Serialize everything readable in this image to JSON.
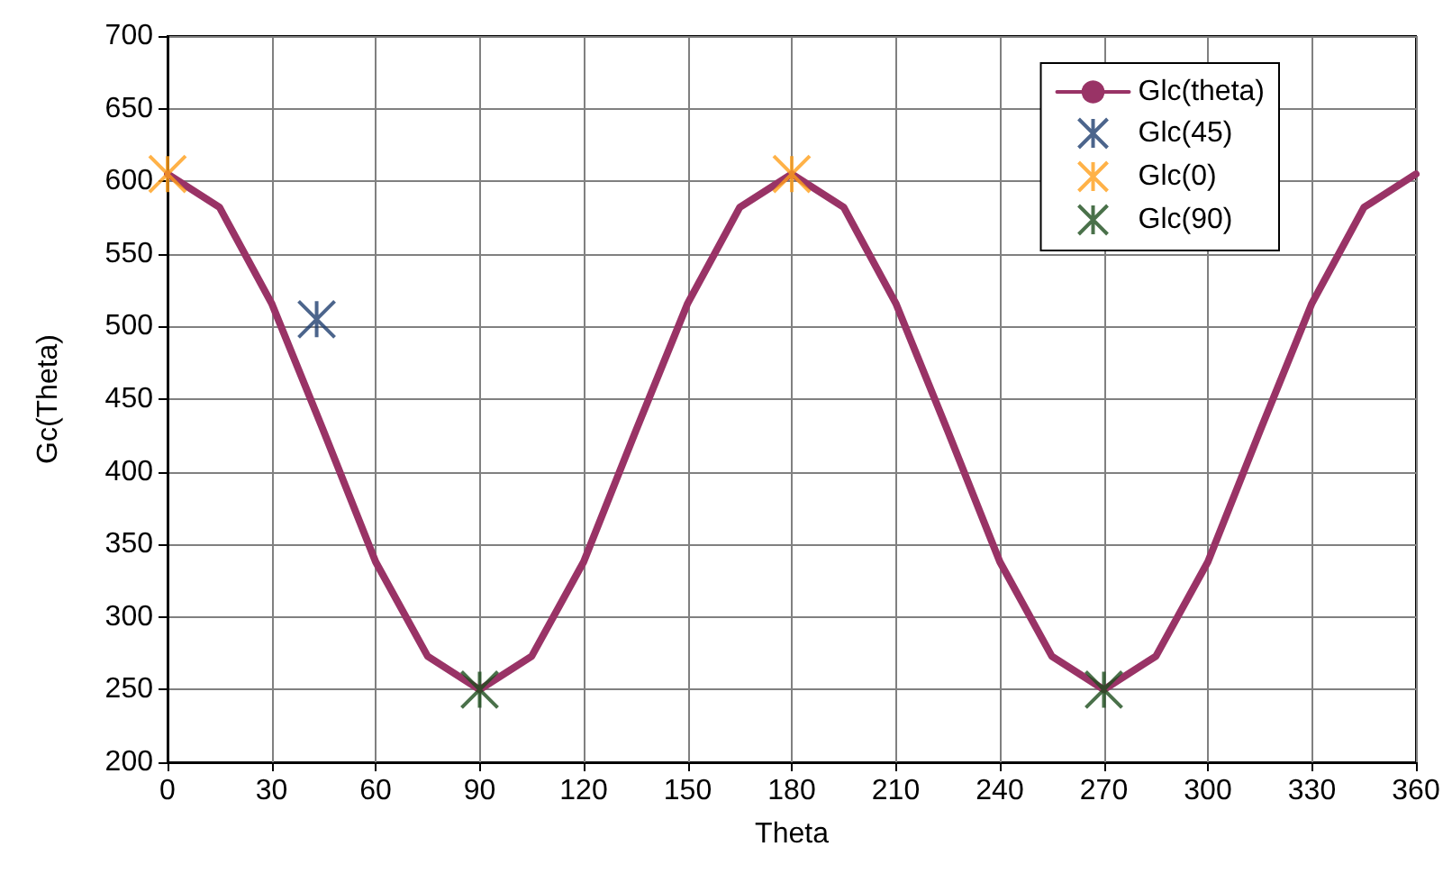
{
  "chart_data": {
    "type": "line",
    "xlabel": "Theta",
    "ylabel": "Gc(Theta)",
    "xlim": [
      0,
      360
    ],
    "xticks": [
      0,
      30,
      60,
      90,
      120,
      150,
      180,
      210,
      240,
      270,
      300,
      330,
      360
    ],
    "ylim": [
      200,
      700
    ],
    "yticks": [
      200,
      250,
      300,
      350,
      400,
      450,
      500,
      550,
      600,
      650,
      700
    ],
    "grid": true,
    "legend": "top right",
    "series": [
      {
        "name": "Glc(theta)",
        "color": "#993366",
        "marker": "none",
        "x": [
          0,
          15,
          30,
          45,
          60,
          75,
          90,
          105,
          120,
          135,
          150,
          165,
          180,
          195,
          210,
          225,
          240,
          255,
          270,
          285,
          300,
          315,
          330,
          345,
          360
        ],
        "values": [
          605,
          582,
          516,
          428,
          338,
          273,
          250,
          273,
          338,
          428,
          516,
          582,
          605,
          582,
          516,
          428,
          338,
          273,
          250,
          273,
          338,
          428,
          516,
          582,
          605
        ]
      },
      {
        "name": "Glc(45)",
        "type": "scatter",
        "marker": "cross",
        "color": "#1f3f6f",
        "x": [
          43
        ],
        "values": [
          505
        ]
      },
      {
        "name": "Glc(0)",
        "type": "scatter",
        "marker": "cross",
        "color": "#ff9f1a",
        "x": [
          0,
          180
        ],
        "values": [
          605,
          605
        ]
      },
      {
        "name": "Glc(90)",
        "type": "scatter",
        "marker": "cross",
        "color": "#1d4d1d",
        "x": [
          90,
          270
        ],
        "values": [
          250,
          250
        ]
      }
    ]
  }
}
